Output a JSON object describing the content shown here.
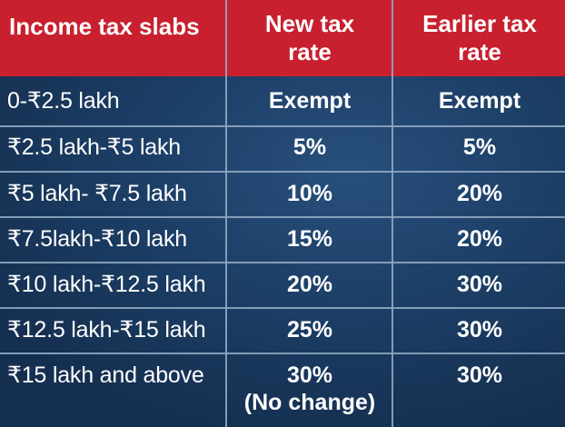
{
  "header": {
    "col1": "Income tax slabs",
    "col2_line1": "New tax",
    "col2_line2": "rate",
    "col3_line1": "Earlier tax",
    "col3_line2": "rate"
  },
  "rows": [
    {
      "slab": "0-₹2.5 lakh",
      "new_rate": "Exempt",
      "earlier_rate": "Exempt"
    },
    {
      "slab": "₹2.5 lakh-₹5 lakh",
      "new_rate": "5%",
      "earlier_rate": "5%"
    },
    {
      "slab": "₹5 lakh- ₹7.5 lakh",
      "new_rate": "10%",
      "earlier_rate": "20%"
    },
    {
      "slab": "₹7.5lakh-₹10 lakh",
      "new_rate": "15%",
      "earlier_rate": "20%"
    },
    {
      "slab": "₹10 lakh-₹12.5 lakh",
      "new_rate": "20%",
      "earlier_rate": "30%"
    },
    {
      "slab": "₹12.5 lakh-₹15 lakh",
      "new_rate": "25%",
      "earlier_rate": "30%"
    },
    {
      "slab": "₹15 lakh and above",
      "new_rate": "30%",
      "new_rate_note": "(No change)",
      "earlier_rate": "30%"
    }
  ],
  "colors": {
    "header_bg": "#c8202f",
    "body_bg": "#1d4068",
    "grid_lines": "#8fa7c2",
    "text": "#ffffff"
  }
}
